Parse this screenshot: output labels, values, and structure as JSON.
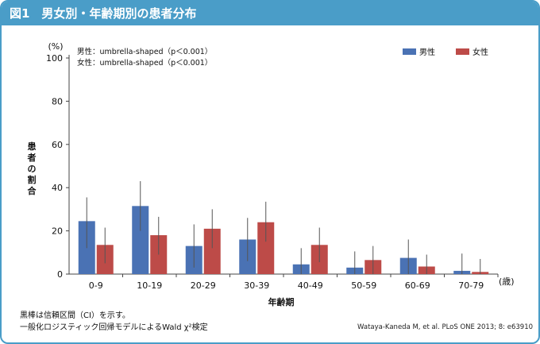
{
  "header": {
    "title": "図1　男女別・年齢期別の患者分布"
  },
  "chart_data": {
    "type": "bar",
    "categories": [
      "0-9",
      "10-19",
      "20-29",
      "30-39",
      "40-49",
      "50-59",
      "60-69",
      "70-79"
    ],
    "series": [
      {
        "name": "男性",
        "color": "#4a72b4",
        "values": [
          24.5,
          31.5,
          13,
          16,
          4.5,
          3,
          7.5,
          1.5
        ],
        "err_low": [
          12,
          20,
          3,
          6,
          0,
          0,
          0,
          0
        ],
        "err_high": [
          35.5,
          43,
          23,
          26,
          12,
          10.5,
          16,
          9.5
        ]
      },
      {
        "name": "女性",
        "color": "#bd4b48",
        "values": [
          13.5,
          18,
          21,
          24,
          13.5,
          6.5,
          3.5,
          1
        ],
        "err_low": [
          5,
          9,
          12,
          15,
          5.5,
          0,
          0,
          0
        ],
        "err_high": [
          21.5,
          26.5,
          30,
          33.5,
          21.5,
          13,
          9,
          7
        ]
      }
    ],
    "ylim": [
      0,
      100
    ],
    "yticks": [
      0,
      20,
      40,
      60,
      80,
      100
    ],
    "yunit": "(%)",
    "ylabel": "患者の割合",
    "xlabel": "年齢期",
    "xunit": "(歳)",
    "annotations": [
      "男性：umbrella-shaped（p＜0.001）",
      "女性：umbrella-shaped（p＜0.001）"
    ],
    "legend_position": "top-right"
  },
  "notes": {
    "line1": "黒棒は信頼区間（CI）を示す。",
    "line2": "一般化ロジスティック回帰モデルによるWald χ²検定"
  },
  "source": "Wataya-Kaneda M, et al. PLoS ONE 2013; 8: e63910"
}
